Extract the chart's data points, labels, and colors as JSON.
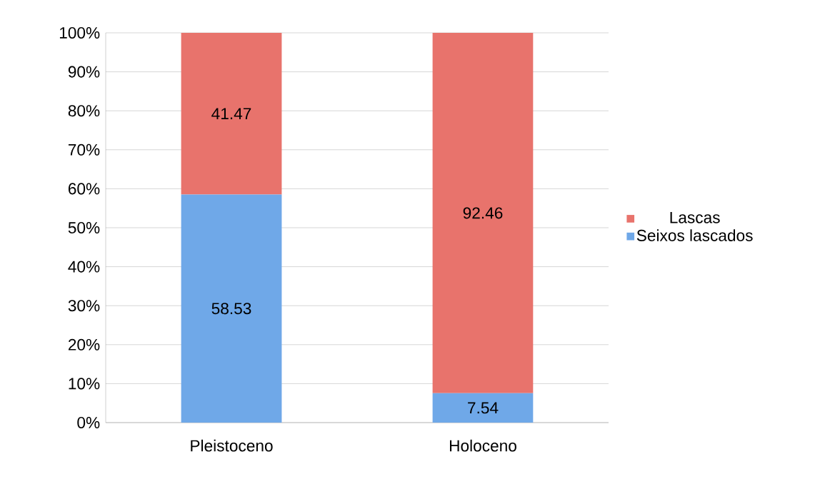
{
  "chart_data": {
    "type": "bar",
    "stacked": true,
    "categories": [
      "Pleistoceno",
      "Holoceno"
    ],
    "series": [
      {
        "name": "Seixos lascados",
        "color": "#6fa8e8",
        "values": [
          58.53,
          7.54
        ]
      },
      {
        "name": "Lascas",
        "color": "#e8736c",
        "values": [
          41.47,
          92.46
        ]
      }
    ],
    "ylim": [
      0,
      100
    ],
    "yticks": [
      {
        "value": 0,
        "label": "0%"
      },
      {
        "value": 10,
        "label": "10%"
      },
      {
        "value": 20,
        "label": "20%"
      },
      {
        "value": 30,
        "label": "30%"
      },
      {
        "value": 40,
        "label": "40%"
      },
      {
        "value": 50,
        "label": "50%"
      },
      {
        "value": 60,
        "label": "60%"
      },
      {
        "value": 70,
        "label": "70%"
      },
      {
        "value": 80,
        "label": "80%"
      },
      {
        "value": 90,
        "label": "90%"
      },
      {
        "value": 100,
        "label": "100%"
      }
    ],
    "grid": "y",
    "legend": "right",
    "data_labels": true
  }
}
